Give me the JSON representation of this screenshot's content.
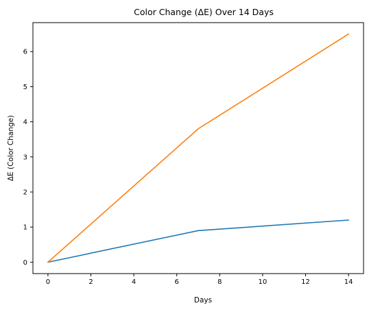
{
  "chart_data": {
    "type": "line",
    "title": "Color Change (ΔE) Over 14 Days",
    "xlabel": "Days",
    "ylabel": "ΔE (Color Change)",
    "xlim": [
      -0.7,
      14.7
    ],
    "ylim": [
      -0.325,
      6.825
    ],
    "xticks": [
      0,
      2,
      4,
      6,
      8,
      10,
      12,
      14
    ],
    "yticks": [
      0,
      1,
      2,
      3,
      4,
      5,
      6
    ],
    "grid": false,
    "legend": "none",
    "series": [
      {
        "color": "#1f77b4",
        "x": [
          0,
          7,
          14
        ],
        "y": [
          0,
          0.9,
          1.2
        ]
      },
      {
        "color": "#ff7f0e",
        "x": [
          0,
          7,
          14
        ],
        "y": [
          0,
          3.8,
          6.5
        ]
      }
    ]
  }
}
